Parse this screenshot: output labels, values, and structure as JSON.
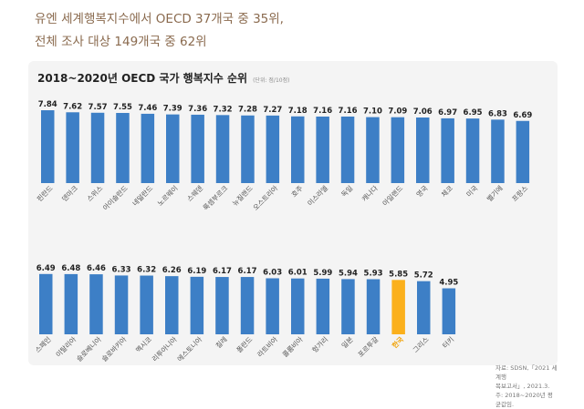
{
  "headline": {
    "line1": "유엔 세계행복지수에서 OECD 37개국 중 35위,",
    "line2": "전체 조사 대상 149개국 중 62위"
  },
  "panel": {
    "title": "2018~2020년 OECD 국가 행복지수 순위",
    "unit": "(단위: 점/10점)"
  },
  "source": {
    "line1": "자료: SDSN,「2021 세계행",
    "line2": "복보고서」, 2021.3.",
    "line3": "주: 2018~2020년 평균값임."
  },
  "colors": {
    "bar": "#3d7fc6",
    "highlight": "#fbb01c",
    "highlight_label": "#f0a30a",
    "label": "#222222"
  },
  "chart_data": [
    {
      "type": "bar",
      "categories": [
        "핀란드",
        "덴마크",
        "스위스",
        "아이슬란드",
        "네덜란드",
        "노르웨이",
        "스웨덴",
        "룩셈부르크",
        "뉴질랜드",
        "오스트리아",
        "호주",
        "이스라엘",
        "독일",
        "캐나다",
        "아일랜드",
        "영국",
        "체코",
        "미국",
        "벨기에",
        "프랑스"
      ],
      "values": [
        7.84,
        7.62,
        7.57,
        7.55,
        7.46,
        7.39,
        7.36,
        7.32,
        7.28,
        7.27,
        7.18,
        7.16,
        7.16,
        7.1,
        7.09,
        7.06,
        6.97,
        6.95,
        6.83,
        6.69
      ],
      "value_labels": [
        "7.84",
        "7.62",
        "7.57",
        "7.55",
        "7.46",
        "7.39",
        "7.36",
        "7.32",
        "7.28",
        "7.27",
        "7.18",
        "7.16",
        "7.16",
        "7.10",
        "7.09",
        "7.06",
        "6.97",
        "6.95",
        "6.83",
        "6.69"
      ],
      "highlight": []
    },
    {
      "type": "bar",
      "categories": [
        "스페인",
        "이탈리아",
        "슬로베니아",
        "슬로바키아",
        "멕시코",
        "리투아니아",
        "에스토니아",
        "칠레",
        "폴란드",
        "라트비아",
        "콜롬비아",
        "헝가리",
        "일본",
        "포르투갈",
        "한국",
        "그리스",
        "터키"
      ],
      "values": [
        6.49,
        6.48,
        6.46,
        6.33,
        6.32,
        6.26,
        6.19,
        6.17,
        6.17,
        6.03,
        6.01,
        5.99,
        5.94,
        5.93,
        5.85,
        5.72,
        4.95
      ],
      "value_labels": [
        "6.49",
        "6.48",
        "6.46",
        "6.33",
        "6.32",
        "6.26",
        "6.19",
        "6.17",
        "6.17",
        "6.03",
        "6.01",
        "5.99",
        "5.94",
        "5.93",
        "5.85",
        "5.72",
        "4.95"
      ],
      "highlight": [
        "한국"
      ]
    }
  ]
}
